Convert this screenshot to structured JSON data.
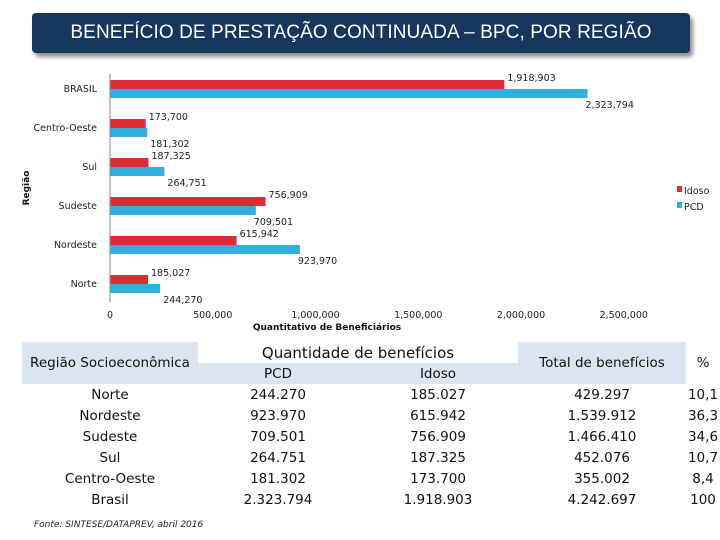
{
  "title": "BENEFÍCIO DE PRESTAÇÃO CONTINUADA – BPC, POR REGIÃO",
  "chart_data": {
    "type": "bar",
    "orientation": "horizontal",
    "categories": [
      "BRASIL",
      "Centro-Oeste",
      "Sul",
      "Sudeste",
      "Nordeste",
      "Norte"
    ],
    "series": [
      {
        "name": "Idoso",
        "color": "#e02a35",
        "values": [
          1918903,
          173700,
          187325,
          756909,
          615942,
          185027
        ],
        "labels": [
          "1,918,903",
          "173,700",
          "187,325",
          "756,909",
          "615,942",
          "185,027"
        ]
      },
      {
        "name": "PCD",
        "color": "#31b0e0",
        "values": [
          2323794,
          181302,
          264751,
          709501,
          923970,
          244270
        ],
        "labels": [
          "2,323,794",
          "181,302",
          "264,751",
          "709,501",
          "923,970",
          "244,270"
        ]
      }
    ],
    "xlabel": "Quantitativo de Beneficiários",
    "ylabel": "Região",
    "xlim": [
      0,
      2500000
    ],
    "xticks": [
      0,
      500000,
      1000000,
      1500000,
      2000000,
      2500000
    ],
    "xtick_labels": [
      "0",
      "500,000",
      "1,000,000",
      "1,500,000",
      "2,000,000",
      "2,500,000"
    ],
    "legend_position": "right",
    "grid": false
  },
  "table": {
    "header_region": "Região Socioeconômica",
    "header_quantity": "Quantidade de benefícios",
    "header_pcd": "PCD",
    "header_idoso": "Idoso",
    "header_total": "Total de benefícios",
    "header_pct": "%",
    "rows": [
      {
        "region": "Norte",
        "pcd": "244.270",
        "idoso": "185.027",
        "total": "429.297",
        "pct": "10,1"
      },
      {
        "region": "Nordeste",
        "pcd": "923.970",
        "idoso": "615.942",
        "total": "1.539.912",
        "pct": "36,3"
      },
      {
        "region": "Sudeste",
        "pcd": "709.501",
        "idoso": "756.909",
        "total": "1.466.410",
        "pct": "34,6"
      },
      {
        "region": "Sul",
        "pcd": "264.751",
        "idoso": "187.325",
        "total": "452.076",
        "pct": "10,7"
      },
      {
        "region": "Centro-Oeste",
        "pcd": "181.302",
        "idoso": "173.700",
        "total": "355.002",
        "pct": "8,4"
      },
      {
        "region": "Brasil",
        "pcd": "2.323.794",
        "idoso": "1.918.903",
        "total": "4.242.697",
        "pct": "100"
      }
    ]
  },
  "source": "Fonte: SINTESE/DATAPREV, abril 2016"
}
